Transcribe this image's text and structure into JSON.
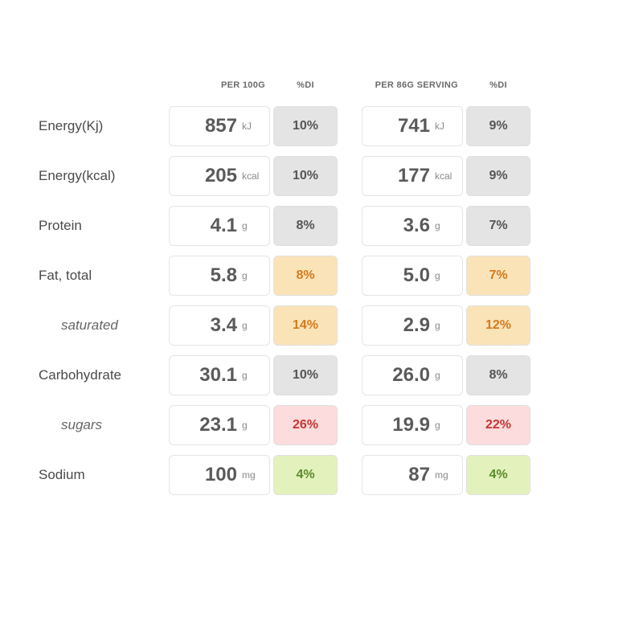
{
  "headers": {
    "col1": "PER 100G",
    "col1_di": "%DI",
    "col2": "PER 86G SERVING",
    "col2_di": "%DI"
  },
  "rows": [
    {
      "label": "Energy(Kj)",
      "indent": false,
      "v1": "857",
      "u1": "kJ",
      "di1": "10%",
      "c1": "gray",
      "v2": "741",
      "u2": "kJ",
      "di2": "9%",
      "c2": "gray"
    },
    {
      "label": "Energy(kcal)",
      "indent": false,
      "v1": "205",
      "u1": "kcal",
      "di1": "10%",
      "c1": "gray",
      "v2": "177",
      "u2": "kcal",
      "di2": "9%",
      "c2": "gray"
    },
    {
      "label": "Protein",
      "indent": false,
      "v1": "4.1",
      "u1": "g",
      "di1": "8%",
      "c1": "gray",
      "v2": "3.6",
      "u2": "g",
      "di2": "7%",
      "c2": "gray"
    },
    {
      "label": "Fat, total",
      "indent": false,
      "v1": "5.8",
      "u1": "g",
      "di1": "8%",
      "c1": "orange",
      "v2": "5.0",
      "u2": "g",
      "di2": "7%",
      "c2": "orange"
    },
    {
      "label": "saturated",
      "indent": true,
      "v1": "3.4",
      "u1": "g",
      "di1": "14%",
      "c1": "orange",
      "v2": "2.9",
      "u2": "g",
      "di2": "12%",
      "c2": "orange"
    },
    {
      "label": "Carbohydrate",
      "indent": false,
      "v1": "30.1",
      "u1": "g",
      "di1": "10%",
      "c1": "gray",
      "v2": "26.0",
      "u2": "g",
      "di2": "8%",
      "c2": "gray"
    },
    {
      "label": "sugars",
      "indent": true,
      "v1": "23.1",
      "u1": "g",
      "di1": "26%",
      "c1": "red",
      "v2": "19.9",
      "u2": "g",
      "di2": "22%",
      "c2": "red"
    },
    {
      "label": "Sodium",
      "indent": false,
      "v1": "100",
      "u1": "mg",
      "di1": "4%",
      "c1": "green",
      "v2": "87",
      "u2": "mg",
      "di2": "4%",
      "c2": "green"
    }
  ],
  "colors": {
    "gray": {
      "bg": "#e4e4e4",
      "fg": "#555555"
    },
    "orange": {
      "bg": "#fbe3b8",
      "fg": "#d57b1f"
    },
    "red": {
      "bg": "#fcdcdc",
      "fg": "#c43636"
    },
    "green": {
      "bg": "#e3f2bd",
      "fg": "#5d8a2b"
    }
  }
}
